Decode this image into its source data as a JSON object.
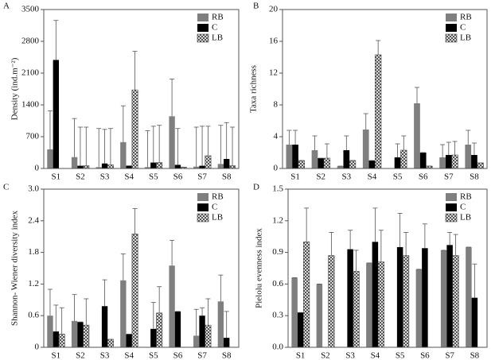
{
  "chart_data": [
    {
      "type": "bar",
      "panel": "A",
      "ylabel": "Density (ind.m⁻²)",
      "categories": [
        "S1",
        "S2",
        "S3",
        "S4",
        "S5",
        "S6",
        "S7",
        "S8"
      ],
      "ylim": [
        0,
        3500
      ],
      "yticks": [
        0,
        700,
        1400,
        2100,
        2800,
        3500
      ],
      "series": [
        {
          "name": "RB",
          "color": "#7f7f7f",
          "values": [
            420,
            250,
            30,
            580,
            30,
            1150,
            40,
            100
          ],
          "errors": [
            850,
            850,
            850,
            800,
            800,
            820,
            870,
            850
          ]
        },
        {
          "name": "C",
          "color": "#000000",
          "values": [
            2390,
            60,
            110,
            60,
            130,
            80,
            60,
            210
          ],
          "errors": [
            870,
            850,
            750,
            0,
            800,
            800,
            870,
            800
          ]
        },
        {
          "name": "LB",
          "color": "#ffffff",
          "pattern": "crosshatch",
          "values": [
            0,
            60,
            80,
            1730,
            130,
            30,
            280,
            60
          ],
          "errors": [
            0,
            850,
            800,
            850,
            820,
            0,
            650,
            850
          ]
        }
      ]
    },
    {
      "type": "bar",
      "panel": "B",
      "ylabel": "Taxa richness",
      "categories": [
        "S1",
        "S2",
        "S3",
        "S4",
        "S5",
        "S6",
        "S7",
        "S8"
      ],
      "ylim": [
        0,
        20
      ],
      "yticks": [
        0,
        4,
        8,
        12,
        16,
        20
      ],
      "series": [
        {
          "name": "RB",
          "color": "#7f7f7f",
          "values": [
            3,
            2.3,
            0.3,
            4.9,
            0,
            8.2,
            1.4,
            3
          ],
          "errors": [
            1.8,
            1.8,
            0,
            2,
            0,
            2,
            1.6,
            1.8
          ]
        },
        {
          "name": "C",
          "color": "#000000",
          "values": [
            3,
            1.3,
            2.3,
            1,
            1.4,
            2,
            1.7,
            1.7
          ],
          "errors": [
            1.8,
            0,
            1.8,
            0,
            1.7,
            0,
            1.6,
            1.5
          ]
        },
        {
          "name": "LB",
          "color": "#ffffff",
          "pattern": "crosshatch",
          "values": [
            1,
            1.3,
            1,
            14.3,
            2.3,
            0.3,
            1.7,
            0.7
          ],
          "errors": [
            0,
            1.8,
            0,
            1.8,
            1.8,
            0,
            1.7,
            0
          ]
        }
      ]
    },
    {
      "type": "bar",
      "panel": "C",
      "ylabel": "Shannon- Wiener diversity index",
      "categories": [
        "S1",
        "S2",
        "S3",
        "S4",
        "S5",
        "S6",
        "S7",
        "S8"
      ],
      "ylim": [
        0,
        3
      ],
      "yticks": [
        0,
        0.6,
        1.2,
        1.8,
        2.4,
        {
          "value": 3,
          "label": "3.0"
        }
      ],
      "series": [
        {
          "name": "RB",
          "color": "#7f7f7f",
          "values": [
            0.6,
            0.5,
            0,
            1.27,
            0,
            1.55,
            0.22,
            0.87
          ],
          "errors": [
            0.5,
            0.5,
            0,
            0.5,
            0,
            0.48,
            0.5,
            0.5
          ]
        },
        {
          "name": "C",
          "color": "#000000",
          "values": [
            0.3,
            0.48,
            0.78,
            0.25,
            0.35,
            0.68,
            0.6,
            0.18
          ],
          "errors": [
            0.5,
            0,
            0.5,
            0,
            0.5,
            0,
            0.15,
            0.5
          ]
        },
        {
          "name": "LB",
          "color": "#ffffff",
          "pattern": "crosshatch",
          "values": [
            0.25,
            0.42,
            0.15,
            2.15,
            0.65,
            0,
            0.42,
            0
          ],
          "errors": [
            0.5,
            0.5,
            0,
            0.48,
            0.5,
            0,
            0.5,
            0
          ]
        }
      ]
    },
    {
      "type": "bar",
      "panel": "D",
      "ylabel": "Pielolu evenness index",
      "categories": [
        "S1",
        "S2",
        "S3",
        "S4",
        "S5",
        "S6",
        "S7",
        "S8"
      ],
      "ylim": [
        0,
        1.5
      ],
      "yticks": [
        {
          "value": 0,
          "label": "0.0"
        },
        0.3,
        0.6,
        0.9,
        1.2,
        1.5
      ],
      "series": [
        {
          "name": "RB",
          "color": "#7f7f7f",
          "values": [
            0.66,
            0.6,
            0,
            0.8,
            0,
            0.74,
            0.92,
            0.95
          ],
          "errors": [
            0,
            0,
            0,
            0,
            0,
            0,
            0,
            0
          ]
        },
        {
          "name": "C",
          "color": "#000000",
          "values": [
            0.33,
            0,
            0.93,
            1,
            0.95,
            0.94,
            0.97,
            0.47
          ],
          "errors": [
            0,
            0,
            0.18,
            0.32,
            0.32,
            0.23,
            0.12,
            0.32
          ]
        },
        {
          "name": "LB",
          "color": "#ffffff",
          "pattern": "crosshatch",
          "values": [
            1,
            0.87,
            0.72,
            0.81,
            0.87,
            0,
            0.87,
            0
          ],
          "errors": [
            0.32,
            0.22,
            0.2,
            0.3,
            0.22,
            0,
            0.2,
            0
          ]
        }
      ]
    }
  ]
}
